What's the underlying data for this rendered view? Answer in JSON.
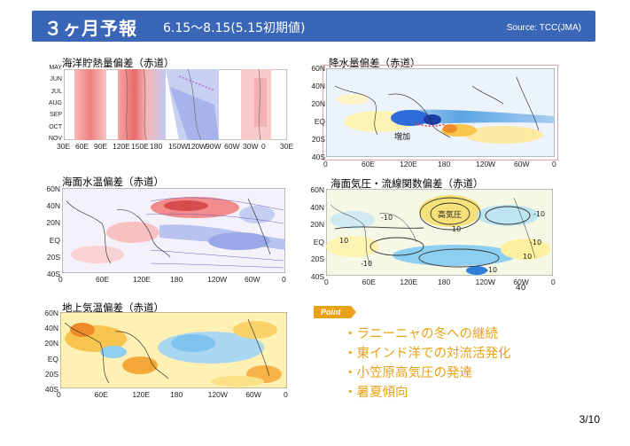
{
  "header": {
    "title": "３ヶ月予報",
    "subtitle": "6.15～8.15(5.15初期値)",
    "source": "Source: TCC(JMA)"
  },
  "panels": {
    "heat": {
      "title": "海洋貯熱量偏差（赤道）",
      "months": [
        "MAY",
        "JUN",
        "JUL",
        "AUG",
        "SEP",
        "OCT",
        "NOV"
      ],
      "lons": [
        "30E",
        "60E",
        "90E",
        "120E",
        "150E",
        "180",
        "150W",
        "120W",
        "90W",
        "60W",
        "30W",
        "0",
        "30E"
      ]
    },
    "precip": {
      "title": "降水量偏差（赤道）",
      "lats": [
        "60N",
        "40N",
        "20N",
        "EQ",
        "20S",
        "40S"
      ],
      "lons": [
        "0",
        "60E",
        "120E",
        "180",
        "120W",
        "60W",
        "0"
      ],
      "label": "増加"
    },
    "sst": {
      "title": "海面水温偏差（赤道）",
      "lats": [
        "60N",
        "40N",
        "20N",
        "EQ",
        "20S",
        "40S"
      ],
      "lons": [
        "0",
        "60E",
        "120E",
        "180",
        "120W",
        "60W",
        "0"
      ]
    },
    "slp": {
      "title": "海面気圧・流線関数偏差（赤道）",
      "lats": [
        "60N",
        "40N",
        "20N",
        "EQ",
        "20S",
        "40S"
      ],
      "lons": [
        "0",
        "60E",
        "120E",
        "180",
        "120W",
        "60W",
        "0"
      ],
      "high_label": "高気圧",
      "contour_labels": [
        "-10",
        "-10",
        "10",
        "10",
        "-10",
        "-10",
        "-10",
        "10"
      ],
      "tail_label": "40"
    },
    "t2m": {
      "title": "地上気温偏差（赤道）",
      "lats": [
        "60N",
        "40N",
        "20N",
        "EQ",
        "20S",
        "40S"
      ],
      "lons": [
        "0",
        "60E",
        "120E",
        "180",
        "120W",
        "60W",
        "0"
      ]
    }
  },
  "point": {
    "badge": "Point",
    "items": [
      "・ラニーニャの冬への継続",
      "・東インド洋での対流活発化",
      "・小笠原高気圧の発達",
      "・暑夏傾向"
    ]
  },
  "page": {
    "number": "3/10"
  }
}
